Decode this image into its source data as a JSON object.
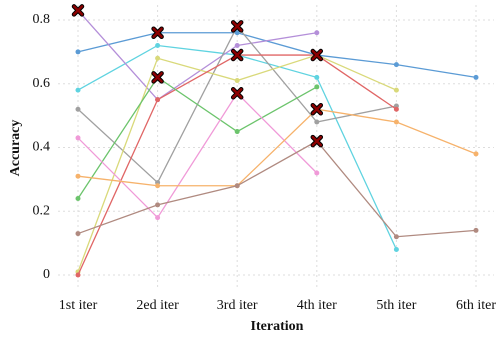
{
  "chart_data": {
    "type": "line",
    "xlabel": "Iteration",
    "ylabel": "Accuracy",
    "categories": [
      "1st iter",
      "2ed iter",
      "3rd iter",
      "4th iter",
      "5th iter",
      "6th iter"
    ],
    "ylim": [
      -0.047,
      0.847
    ],
    "yticks": [
      0,
      0.2,
      0.4,
      0.6,
      0.8
    ],
    "grid": true,
    "highlight_color": "#8b0000",
    "series": [
      {
        "color": "#5b9bd5",
        "values": [
          0.7,
          0.76,
          0.76,
          0.69,
          0.66,
          0.62
        ],
        "highlight": [
          1
        ]
      },
      {
        "color": "#5fd3e0",
        "values": [
          0.58,
          0.72,
          0.69,
          0.62,
          0.08,
          null
        ],
        "highlight": []
      },
      {
        "color": "#b48fd9",
        "values": [
          0.83,
          0.55,
          0.72,
          0.76,
          null,
          null
        ],
        "highlight": [
          0
        ]
      },
      {
        "color": "#a0a0a0",
        "values": [
          0.52,
          0.29,
          0.78,
          0.48,
          0.53,
          null
        ],
        "highlight": [
          2
        ]
      },
      {
        "color": "#d9d97a",
        "values": [
          0.01,
          0.68,
          0.61,
          0.69,
          0.58,
          null
        ],
        "highlight": []
      },
      {
        "color": "#e06666",
        "values": [
          0.0,
          0.55,
          0.69,
          0.69,
          0.52,
          null
        ],
        "highlight": [
          2,
          3
        ]
      },
      {
        "color": "#6cc46c",
        "values": [
          0.24,
          0.62,
          0.45,
          0.59,
          null,
          null
        ],
        "highlight": [
          1
        ]
      },
      {
        "color": "#f09ad8",
        "values": [
          0.43,
          0.18,
          0.57,
          0.32,
          null,
          null
        ],
        "highlight": [
          2
        ]
      },
      {
        "color": "#f6b26b",
        "values": [
          0.31,
          0.28,
          0.28,
          0.52,
          0.48,
          0.38
        ],
        "highlight": [
          3
        ]
      },
      {
        "color": "#b08a80",
        "values": [
          0.13,
          0.22,
          0.28,
          0.42,
          0.12,
          0.14
        ],
        "highlight": [
          3
        ]
      }
    ]
  }
}
